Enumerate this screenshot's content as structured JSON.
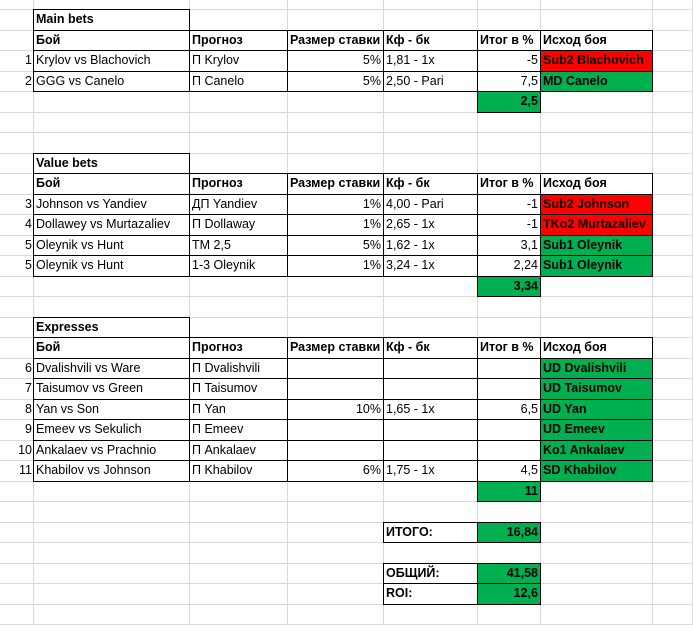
{
  "sections": [
    {
      "title": "Main bets",
      "header": [
        "Бой",
        "Прогноз",
        "Размер ставки",
        "Кф - бк",
        "Итог в %",
        "Исход боя"
      ],
      "rows": [
        {
          "n": "1",
          "fight": "Krylov vs Blachovich",
          "forecast": "П Krylov",
          "stake": "5%",
          "odds": "1,81 - 1x",
          "result": "-5",
          "outcome": "Sub2 Blachovich",
          "color": "#ff0000"
        },
        {
          "n": "2",
          "fight": "GGG vs Canelo",
          "forecast": "П Canelo",
          "stake": "5%",
          "odds": "2,50 - Pari",
          "result": "7,5",
          "outcome": "MD Canelo",
          "color": "#00b050"
        }
      ],
      "total": "2,5",
      "total_color": "#00b050"
    },
    {
      "title": "Value bets",
      "header": [
        "Бой",
        "Прогноз",
        "Размер ставки",
        "Кф - бк",
        "Итог в %",
        "Исход боя"
      ],
      "rows": [
        {
          "n": "3",
          "fight": "Johnson vs Yandiev",
          "forecast": "ДП Yandiev",
          "stake": "1%",
          "odds": "4,00 - Pari",
          "result": "-1",
          "outcome": "Sub2 Johnson",
          "color": "#ff0000"
        },
        {
          "n": "4",
          "fight": "Dollawey vs Murtazaliev",
          "forecast": "П Dollaway",
          "stake": "1%",
          "odds": "2,65 - 1x",
          "result": "-1",
          "outcome": "TKo2 Murtazaliev",
          "color": "#ff0000"
        },
        {
          "n": "5",
          "fight": "Oleynik vs Hunt",
          "forecast": "ТМ 2,5",
          "stake": "5%",
          "odds": "1,62 - 1x",
          "result": "3,1",
          "outcome": "Sub1 Oleynik",
          "color": "#00b050"
        },
        {
          "n": "5",
          "fight": "Oleynik vs Hunt",
          "forecast": "1-3 Oleynik",
          "stake": "1%",
          "odds": "3,24 - 1x",
          "result": "2,24",
          "outcome": "Sub1 Oleynik",
          "color": "#00b050"
        }
      ],
      "total": "3,34",
      "total_color": "#00b050"
    },
    {
      "title": "Expresses",
      "header": [
        "Бой",
        "Прогноз",
        "Размер ставки",
        "Кф - бк",
        "Итог в %",
        "Исход боя"
      ],
      "rows": [
        {
          "n": "6",
          "fight": "Dvalishvili vs Ware",
          "forecast": "П Dvalishvili",
          "stake": null,
          "odds": null,
          "result": null,
          "outcome": "UD Dvalishvili",
          "color": "#00b050"
        },
        {
          "n": "7",
          "fight": "Taisumov vs Green",
          "forecast": "П Taisumov",
          "stake": null,
          "odds": null,
          "result": null,
          "outcome": "UD Taisumov",
          "color": "#00b050"
        },
        {
          "n": "8",
          "fight": "Yan vs Son",
          "forecast": "П Yan",
          "stake": "10%",
          "odds": "1,65 - 1x",
          "result": "6,5",
          "outcome": "UD Yan",
          "color": "#00b050"
        },
        {
          "n": "9",
          "fight": "Emeev vs Sekulich",
          "forecast": "П Emeev",
          "stake": null,
          "odds": null,
          "result": null,
          "outcome": "UD Emeev",
          "color": "#00b050"
        },
        {
          "n": "10",
          "fight": "Ankalaev vs Prachnio",
          "forecast": "П Ankalaev",
          "stake": null,
          "odds": null,
          "result": null,
          "outcome": "Ko1 Ankalaev",
          "color": "#00b050"
        },
        {
          "n": "11",
          "fight": "Khabilov vs Johnson",
          "forecast": "П Khabilov",
          "stake": "6%",
          "odds": "1,75 - 1x",
          "result": "4,5",
          "outcome": "SD Khabilov",
          "color": "#00b050"
        }
      ],
      "total": "11",
      "total_color": "#00b050"
    }
  ],
  "summary": [
    {
      "label": "ИТОГО:",
      "value": "16,84",
      "color": "#00b050"
    },
    {
      "label": "ОБЩИЙ:",
      "value": "41,58",
      "color": "#00b050"
    },
    {
      "label": "ROI:",
      "value": "12,6",
      "color": "#00b050"
    }
  ]
}
